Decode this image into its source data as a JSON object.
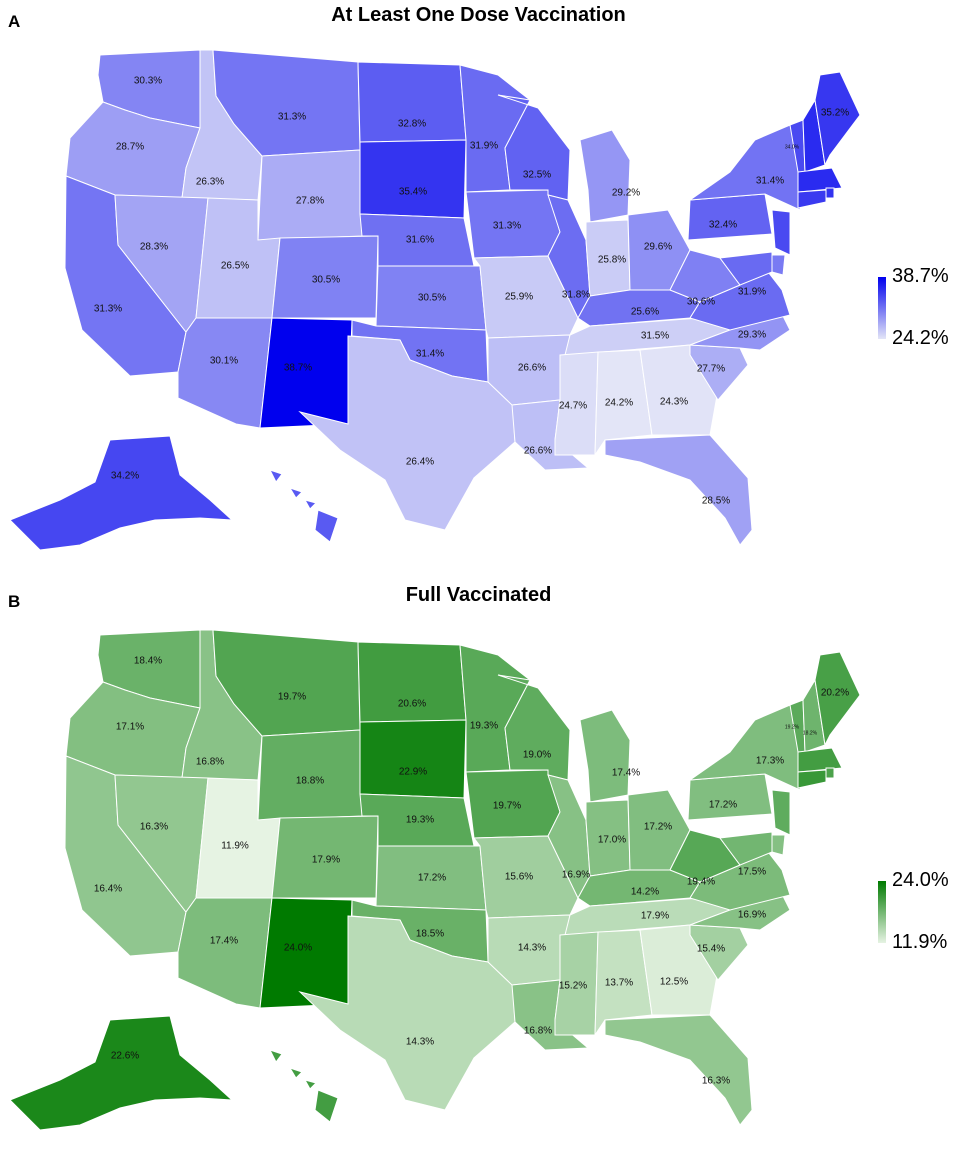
{
  "panels": [
    {
      "letter": "A",
      "title": "At Least One Dose Vaccination",
      "color_low": "#e3e5f7",
      "color_high": "#0000ee",
      "legend": {
        "max": "38.7%",
        "min": "24.2%"
      },
      "range": [
        24.2,
        38.7
      ],
      "states": {
        "WA": 30.3,
        "OR": 28.7,
        "CA": 31.3,
        "ID": 26.3,
        "NV": 28.3,
        "MT": 31.3,
        "WY": 27.8,
        "UT": 26.5,
        "AZ": 30.1,
        "CO": 30.5,
        "NM": 38.7,
        "ND": 32.8,
        "SD": 35.4,
        "NE": 31.6,
        "KS": 30.5,
        "OK": 31.4,
        "TX": 26.4,
        "MN": 31.9,
        "IA": 31.3,
        "MO": 25.9,
        "AR": 26.6,
        "LA": 26.6,
        "WI": 32.5,
        "IL": 31.8,
        "MI": 29.2,
        "IN": 25.8,
        "OH": 29.6,
        "KY": 31.5,
        "TN": 25.6,
        "MS": 24.7,
        "AL": 24.2,
        "GA": 24.3,
        "FL": 28.5,
        "SC": 27.7,
        "NC": 29.3,
        "VA": 31.9,
        "WV": 30.6,
        "PA": 32.4,
        "NY": 31.4,
        "ME": 35.2,
        "VT": 34.0,
        "NH": 36.0,
        "MA": 36.0,
        "CT": 35.0,
        "RI": 35.5,
        "NJ": 34.0,
        "DE": 31.0,
        "MD": 32.0,
        "AK": 34.2,
        "HI": 33.0
      },
      "labels": {
        "WA": "30.3%",
        "OR": "28.7%",
        "CA": "31.3%",
        "ID": "26.3%",
        "NV": "28.3%",
        "MT": "31.3%",
        "WY": "27.8%",
        "UT": "26.5%",
        "AZ": "30.1%",
        "CO": "30.5%",
        "NM": "38.7%",
        "ND": "32.8%",
        "SD": "35.4%",
        "NE": "31.6%",
        "KS": "30.5%",
        "OK": "31.4%",
        "TX": "26.4%",
        "MN": "31.9%",
        "IA": "31.3%",
        "MO": "25.9%",
        "AR": "26.6%",
        "LA": "26.6%",
        "WI": "32.5%",
        "IL": "31.8%",
        "MI": "29.2%",
        "IN": "25.8%",
        "OH": "29.6%",
        "KY": "31.5%",
        "TN": "25.6%",
        "MS": "24.7%",
        "AL": "24.2%",
        "GA": "24.3%",
        "FL": "28.5%",
        "SC": "27.7%",
        "NC": "29.3%",
        "VA": "31.9%",
        "WV": "30.6%",
        "PA": "32.4%",
        "NY": "31.4%",
        "ME": "35.2%",
        "VT": "34.0%",
        "AK": "34.2%"
      }
    },
    {
      "letter": "B",
      "title": "Full Vaccinated",
      "color_low": "#e6f3e3",
      "color_high": "#007a00",
      "legend": {
        "max": "24.0%",
        "min": "11.9%"
      },
      "range": [
        11.9,
        24.0
      ],
      "states": {
        "WA": 18.4,
        "OR": 17.1,
        "CA": 16.4,
        "ID": 16.8,
        "NV": 16.3,
        "MT": 19.7,
        "WY": 18.8,
        "UT": 11.9,
        "AZ": 17.4,
        "CO": 17.9,
        "NM": 24.0,
        "ND": 20.6,
        "SD": 22.9,
        "NE": 19.3,
        "KS": 17.2,
        "OK": 18.5,
        "TX": 14.3,
        "MN": 19.3,
        "IA": 19.7,
        "MO": 15.6,
        "AR": 14.3,
        "LA": 16.8,
        "WI": 19.0,
        "IL": 16.9,
        "MI": 17.4,
        "IN": 17.0,
        "OH": 17.2,
        "KY": 17.9,
        "TN": 14.2,
        "MS": 15.2,
        "AL": 13.7,
        "GA": 12.5,
        "FL": 16.3,
        "SC": 15.4,
        "NC": 16.9,
        "VA": 17.5,
        "WV": 19.4,
        "PA": 17.2,
        "NY": 17.3,
        "ME": 20.2,
        "VT": 19.2,
        "NH": 18.2,
        "MA": 20.5,
        "CT": 21.0,
        "RI": 20.0,
        "NJ": 19.0,
        "DE": 17.0,
        "MD": 18.0,
        "AK": 22.6,
        "HI": 20.5
      },
      "labels": {
        "WA": "18.4%",
        "OR": "17.1%",
        "CA": "16.4%",
        "ID": "16.8%",
        "NV": "16.3%",
        "MT": "19.7%",
        "WY": "18.8%",
        "UT": "11.9%",
        "AZ": "17.4%",
        "CO": "17.9%",
        "NM": "24.0%",
        "ND": "20.6%",
        "SD": "22.9%",
        "NE": "19.3%",
        "KS": "17.2%",
        "OK": "18.5%",
        "TX": "14.3%",
        "MN": "19.3%",
        "IA": "19.7%",
        "MO": "15.6%",
        "AR": "14.3%",
        "LA": "16.8%",
        "WI": "19.0%",
        "IL": "16.9%",
        "MI": "17.4%",
        "IN": "17.0%",
        "OH": "17.2%",
        "KY": "17.9%",
        "TN": "14.2%",
        "MS": "15.2%",
        "AL": "13.7%",
        "GA": "12.5%",
        "FL": "16.3%",
        "SC": "15.4%",
        "NC": "16.9%",
        "VA": "17.5%",
        "WV": "19.4%",
        "PA": "17.2%",
        "NY": "17.3%",
        "ME": "20.2%",
        "VT": "19.2%",
        "NH": "18.2%",
        "AK": "22.6%"
      }
    }
  ]
}
